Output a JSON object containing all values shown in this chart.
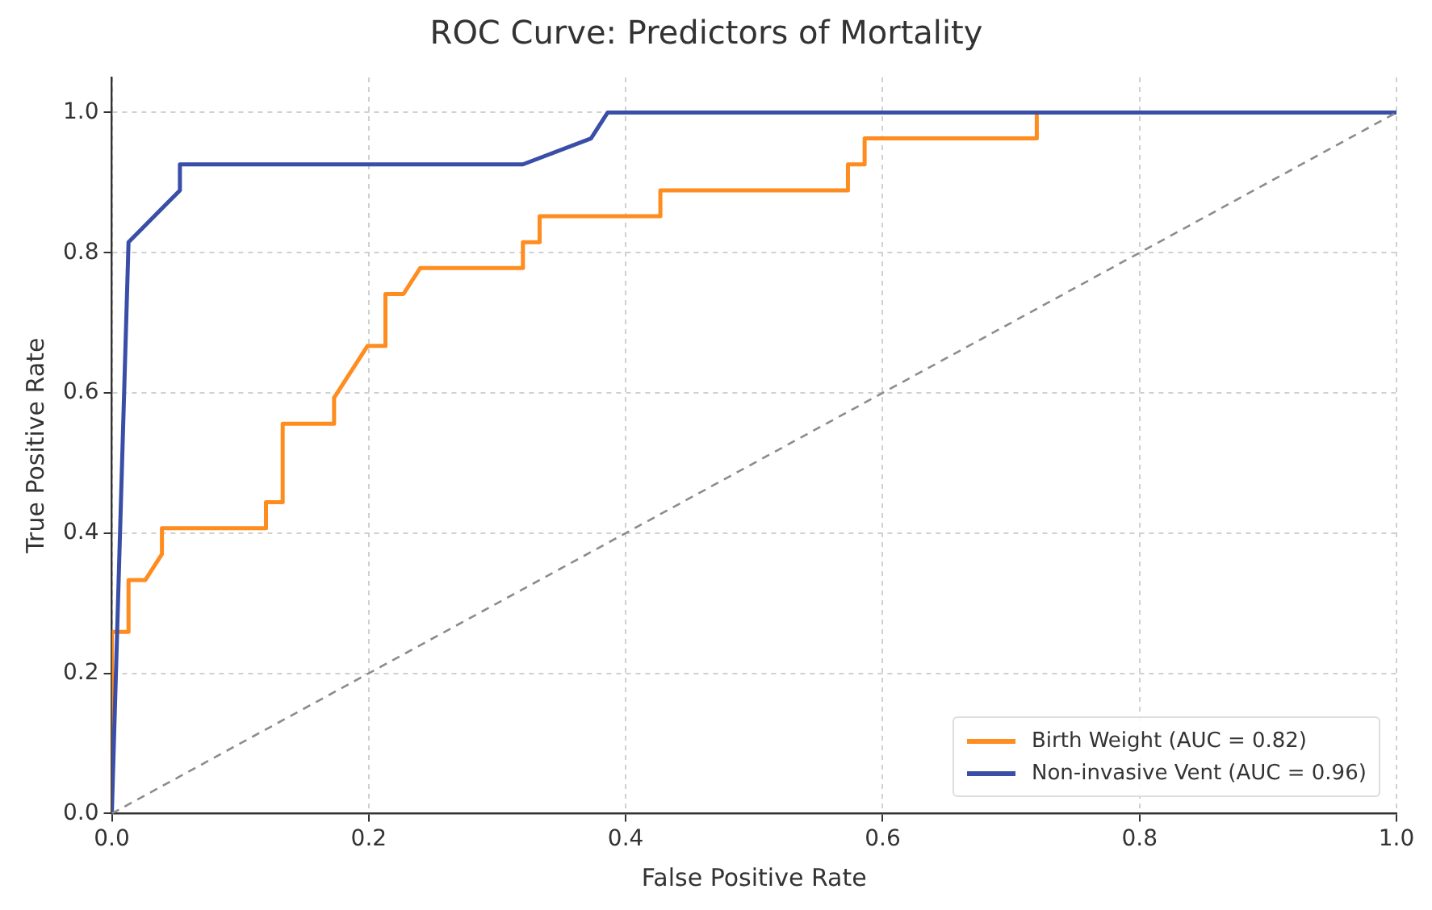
{
  "chart_data": {
    "type": "line",
    "title": "ROC Curve: Predictors of Mortality",
    "xlabel": "False Positive Rate",
    "ylabel": "True Positive Rate",
    "xlim": [
      0,
      1
    ],
    "ylim": [
      0,
      1.05
    ],
    "xticks": [
      {
        "value": 0,
        "label": "0.0"
      },
      0.2,
      0.4,
      0.6,
      0.8,
      {
        "value": 1,
        "label": "1.0"
      }
    ],
    "yticks": [
      {
        "value": 0,
        "label": "0.0"
      },
      0.2,
      0.4,
      0.6,
      0.8,
      {
        "value": 1,
        "label": "1.0"
      }
    ],
    "grid": true,
    "legend": "bottom right",
    "marker": "none",
    "series": [
      {
        "name": "Birth Weight (AUC = 0.82)",
        "color": "#ff8c1f",
        "line_style": "solid",
        "x": [
          0,
          0,
          0.013,
          0.013,
          0.026,
          0.039,
          0.039,
          0.12,
          0.12,
          0.133,
          0.133,
          0.173,
          0.173,
          0.199,
          0.213,
          0.213,
          0.227,
          0.24,
          0.32,
          0.32,
          0.333,
          0.333,
          0.427,
          0.427,
          0.573,
          0.573,
          0.586,
          0.586,
          0.72,
          0.72
        ],
        "values": [
          0,
          0.259,
          0.259,
          0.333,
          0.333,
          0.37,
          0.407,
          0.407,
          0.444,
          0.444,
          0.556,
          0.556,
          0.593,
          0.667,
          0.667,
          0.741,
          0.741,
          0.778,
          0.778,
          0.815,
          0.815,
          0.852,
          0.852,
          0.889,
          0.889,
          0.926,
          0.926,
          0.963,
          0.963,
          1
        ]
      },
      {
        "name": "Non-invasive Vent (AUC = 0.96)",
        "color": "#3a4ea8",
        "line_style": "solid",
        "x": [
          0,
          0.013,
          0.053,
          0.053,
          0.32,
          0.373,
          0.386,
          1
        ],
        "values": [
          0,
          0.815,
          0.889,
          0.926,
          0.926,
          0.963,
          1,
          1
        ]
      },
      {
        "color": "#8c8c8c",
        "line_style": "dashed",
        "x": [
          0,
          1
        ],
        "values": [
          0,
          1
        ]
      }
    ]
  }
}
